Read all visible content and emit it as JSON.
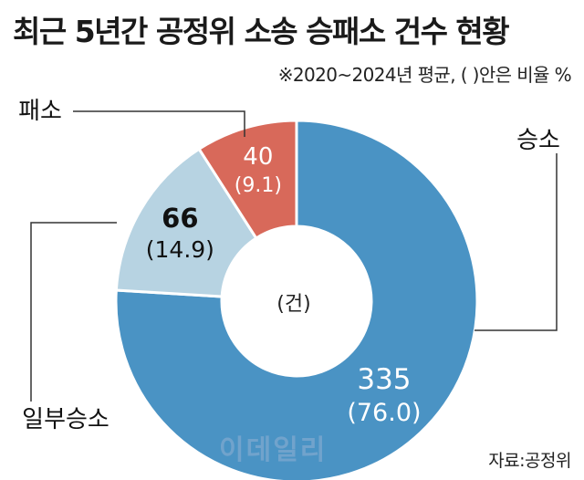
{
  "title": "최근 5년간 공정위 소송 승패소 건수 현황",
  "subtitle": "※2020~2024년 평균, (  )안은 비율 %",
  "center_label": "(건)",
  "source": "자료:공정위",
  "watermark": "이데일리",
  "colors": {
    "win": "#4a93c4",
    "partial": "#b7d3e2",
    "loss": "#d8695a",
    "divider": "#ffffff",
    "leader": "#333333"
  },
  "chart_data": {
    "type": "pie",
    "title": "최근 5년간 공정위 소송 승패소 건수 현황",
    "subtitle": "※2020~2024년 평균, (  )안은 비율 %",
    "unit": "건",
    "donut": true,
    "slices": [
      {
        "name": "승소",
        "value": 335,
        "percent_label": "(76.0)",
        "percent": 76.0
      },
      {
        "name": "일부승소",
        "value": 66,
        "percent_label": "(14.9)",
        "percent": 14.9
      },
      {
        "name": "패소",
        "value": 40,
        "percent_label": "(9.1)",
        "percent": 9.1
      }
    ]
  }
}
